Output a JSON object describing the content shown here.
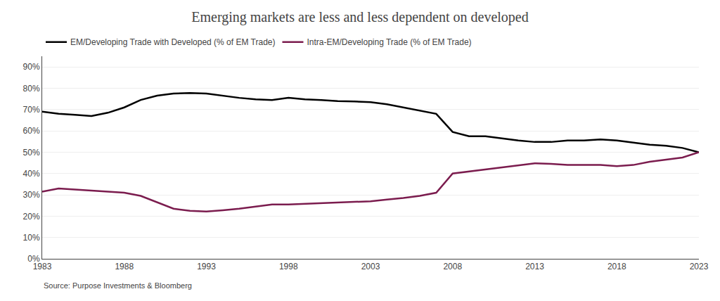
{
  "chart_data": {
    "type": "line",
    "title": "Emerging markets are less and less dependent on developed",
    "x": [
      1983,
      1984,
      1985,
      1986,
      1987,
      1988,
      1989,
      1990,
      1991,
      1992,
      1993,
      1994,
      1995,
      1996,
      1997,
      1998,
      1999,
      2000,
      2001,
      2002,
      2003,
      2004,
      2005,
      2006,
      2007,
      2008,
      2009,
      2010,
      2011,
      2012,
      2013,
      2014,
      2015,
      2016,
      2017,
      2018,
      2019,
      2020,
      2021,
      2022,
      2023
    ],
    "series": [
      {
        "name": "EM/Developing Trade with Developed (% of EM Trade)",
        "color": "#000000",
        "values": [
          0.69,
          0.68,
          0.675,
          0.67,
          0.685,
          0.71,
          0.745,
          0.765,
          0.775,
          0.778,
          0.775,
          0.765,
          0.755,
          0.748,
          0.745,
          0.755,
          0.748,
          0.745,
          0.74,
          0.738,
          0.735,
          0.725,
          0.71,
          0.695,
          0.68,
          0.595,
          0.575,
          0.575,
          0.565,
          0.555,
          0.548,
          0.548,
          0.555,
          0.555,
          0.56,
          0.555,
          0.545,
          0.535,
          0.53,
          0.52,
          0.5
        ]
      },
      {
        "name": "Intra-EM/Developing Trade (% of EM Trade)",
        "color": "#7B1C4E",
        "values": [
          0.315,
          0.33,
          0.325,
          0.32,
          0.315,
          0.31,
          0.295,
          0.265,
          0.235,
          0.225,
          0.222,
          0.228,
          0.235,
          0.245,
          0.255,
          0.255,
          0.258,
          0.26,
          0.263,
          0.267,
          0.27,
          0.278,
          0.285,
          0.295,
          0.31,
          0.4,
          0.41,
          0.42,
          0.43,
          0.44,
          0.448,
          0.445,
          0.44,
          0.44,
          0.44,
          0.435,
          0.44,
          0.455,
          0.465,
          0.475,
          0.5
        ]
      }
    ],
    "xlim": [
      1983,
      2023
    ],
    "xticks": [
      1983,
      1988,
      1993,
      1998,
      2003,
      2008,
      2013,
      2018,
      2023
    ],
    "ylim": [
      0,
      0.95
    ],
    "yticks": [
      {
        "value": 0,
        "label": "0%"
      },
      {
        "value": 0.1,
        "label": "10%"
      },
      {
        "value": 0.2,
        "label": "20%"
      },
      {
        "value": 0.3,
        "label": "30%"
      },
      {
        "value": 0.4,
        "label": "40%"
      },
      {
        "value": 0.5,
        "label": "50%"
      },
      {
        "value": 0.6,
        "label": "60%"
      },
      {
        "value": 0.7,
        "label": "70%"
      },
      {
        "value": 0.8,
        "label": "80%"
      },
      {
        "value": 0.9,
        "label": "90%"
      }
    ],
    "grid": "y",
    "legend": "upper left",
    "annotations": [
      "Source: Purpose Investments & Bloomberg"
    ]
  }
}
